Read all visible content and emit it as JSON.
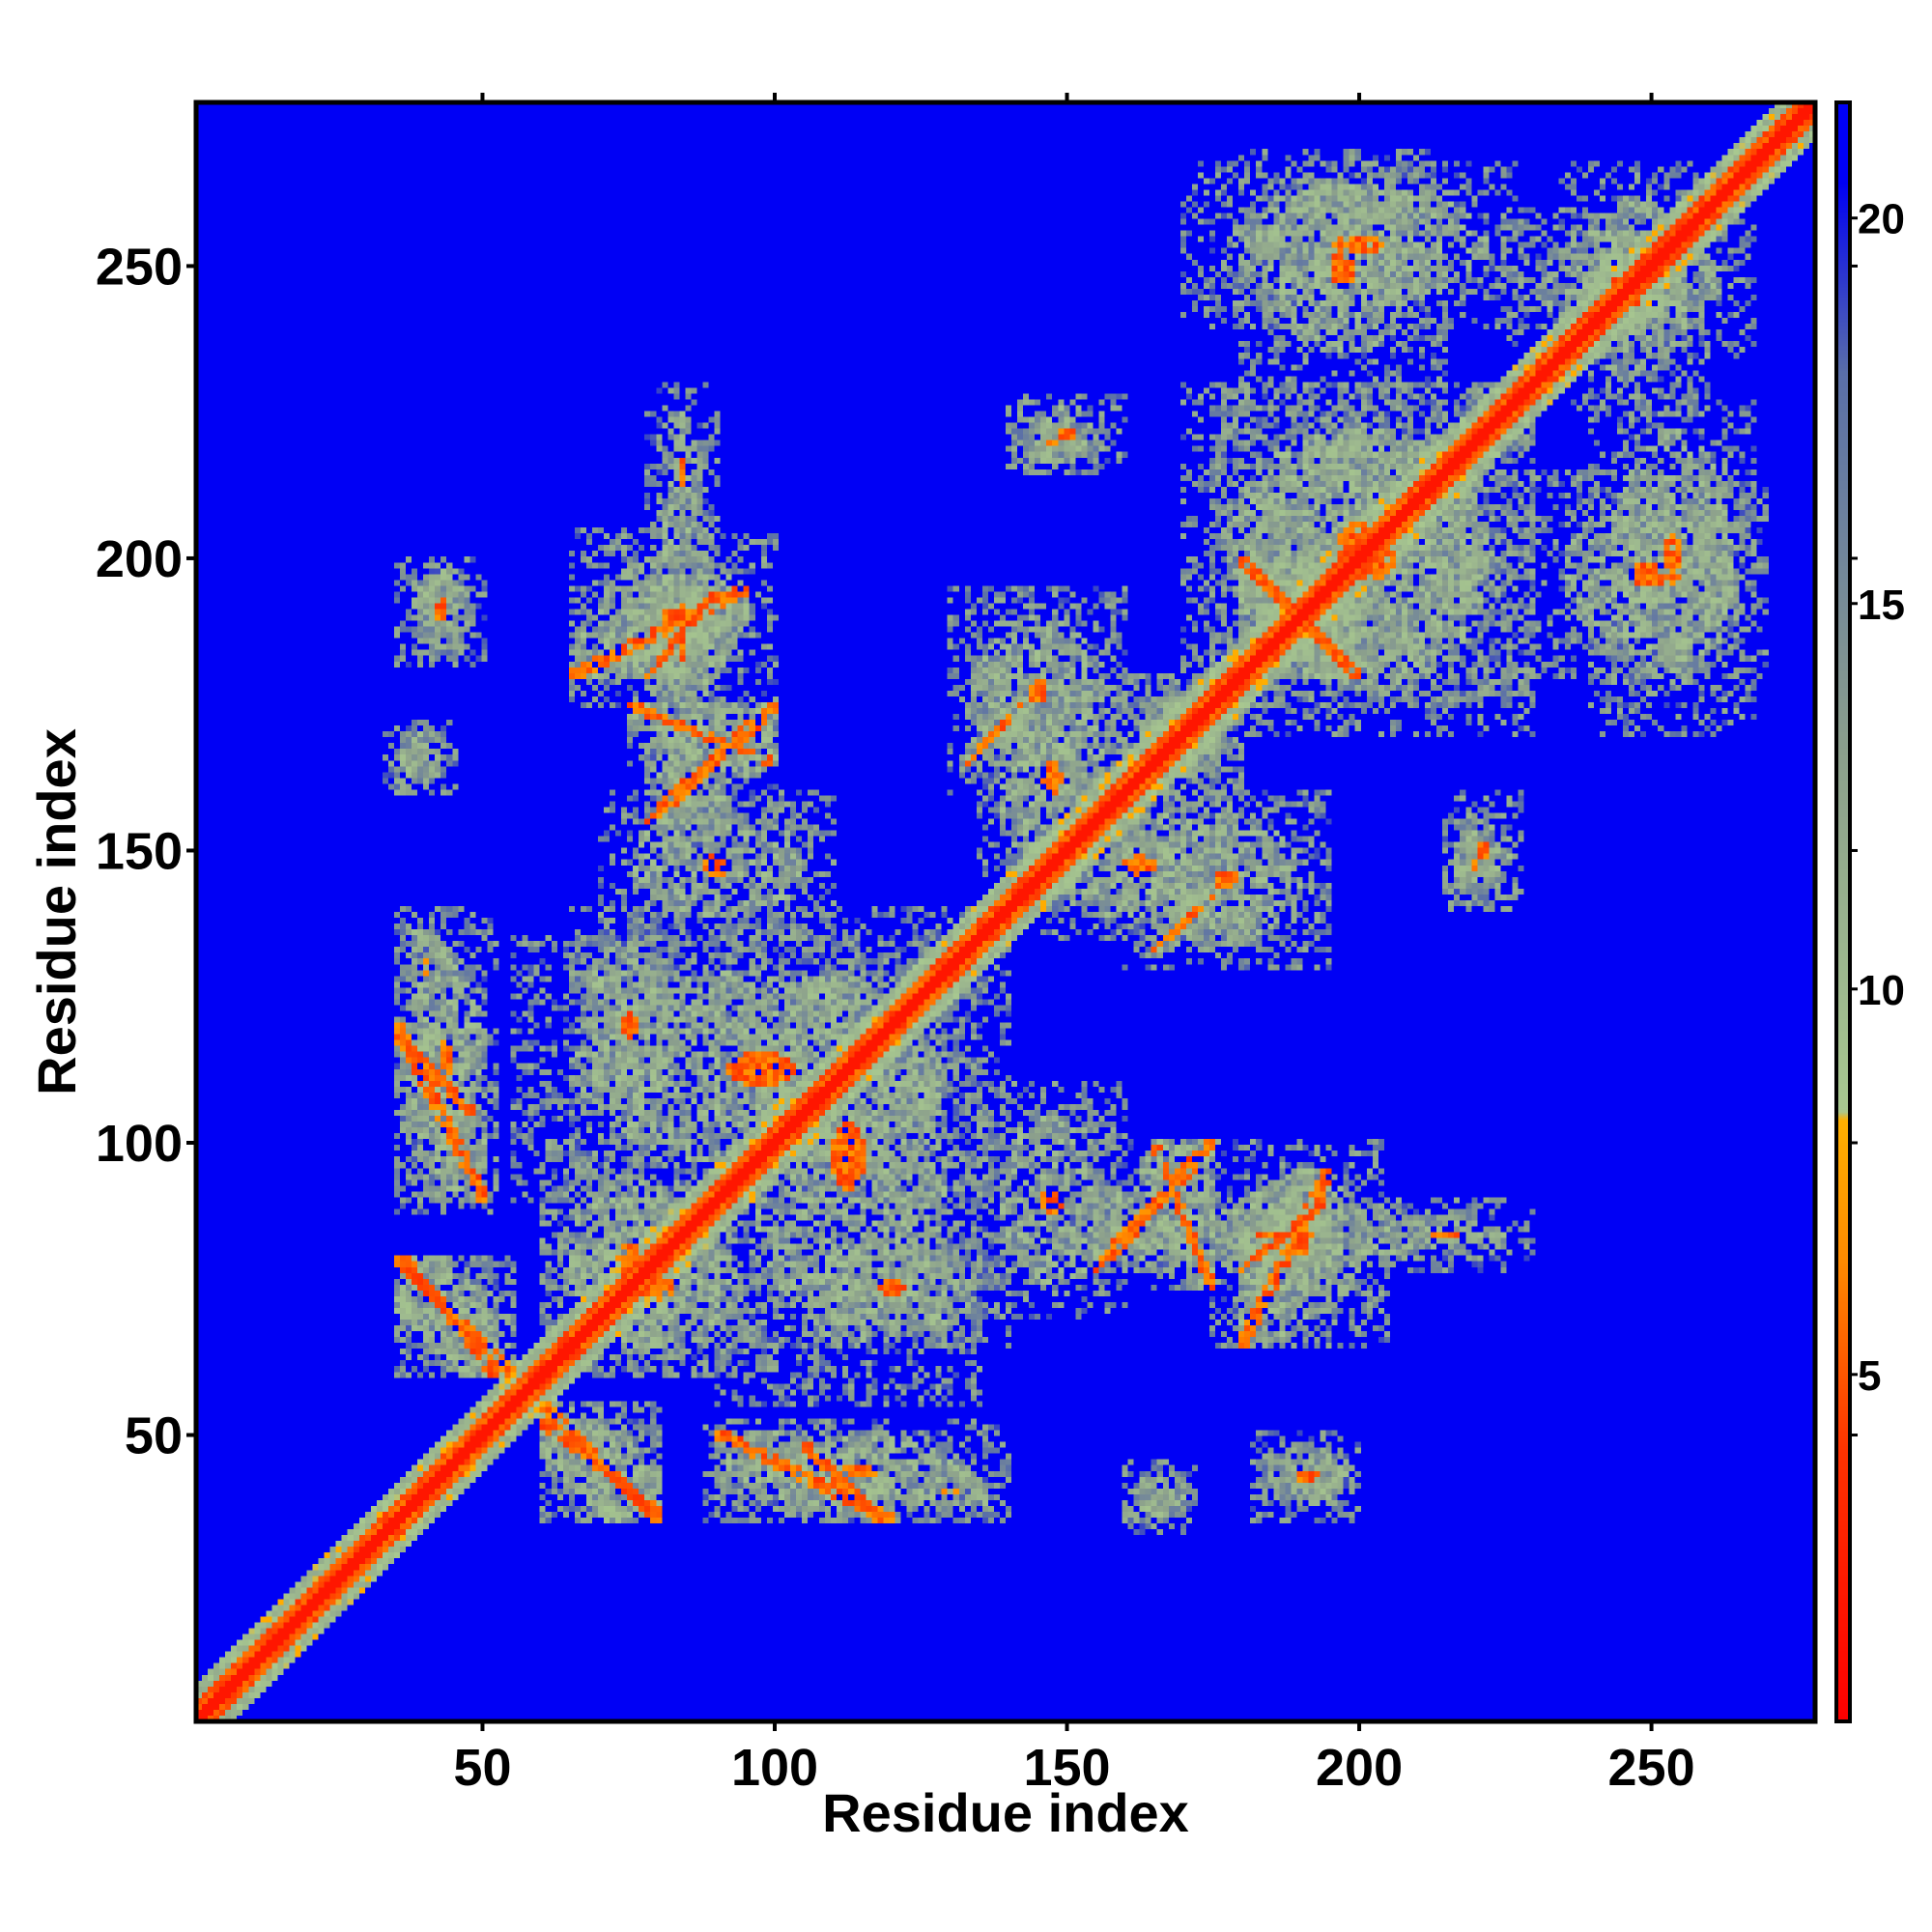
{
  "chart_data": {
    "type": "heatmap",
    "title": "",
    "xlabel": "Residue index",
    "ylabel": "Residue index",
    "xlim": [
      1,
      278
    ],
    "ylim": [
      1,
      278
    ],
    "n_residues": 278,
    "x_ticks": [
      50,
      100,
      150,
      200,
      250
    ],
    "x_tick_labels": [
      "50",
      "100",
      "150",
      "200",
      "250"
    ],
    "y_ticks": [
      50,
      100,
      150,
      200,
      250
    ],
    "y_tick_labels": [
      "50",
      "100",
      "150",
      "200",
      "250"
    ],
    "colorbar": {
      "range": [
        0.5,
        21.5
      ],
      "ticks": [
        5,
        10,
        15,
        20
      ],
      "tick_labels": [
        "5",
        "10",
        "15",
        "20"
      ],
      "stops": [
        {
          "value": 0.5,
          "color": "#ff0000"
        },
        {
          "value": 4.0,
          "color": "#ff3300"
        },
        {
          "value": 6.5,
          "color": "#ff8c00"
        },
        {
          "value": 8.3,
          "color": "#ffb000"
        },
        {
          "value": 8.4,
          "color": "#a8c890"
        },
        {
          "value": 13.0,
          "color": "#8ca08c"
        },
        {
          "value": 18.0,
          "color": "#5a6fa8"
        },
        {
          "value": 20.5,
          "color": "#0000f5"
        }
      ],
      "background_color": "#0000f5"
    },
    "diagonal_band_width": 6,
    "contact_regions": [
      {
        "x": [
          35,
          50
        ],
        "y": [
          90,
          120
        ],
        "kind": "anti"
      },
      {
        "x": [
          38,
          48
        ],
        "y": [
          185,
          200
        ],
        "kind": "patch"
      },
      {
        "x": [
          35,
          42
        ],
        "y": [
          160,
          172
        ],
        "kind": "patch"
      },
      {
        "x": [
          35,
          45
        ],
        "y": [
          120,
          140
        ],
        "kind": "patch"
      },
      {
        "x": [
          36,
          52
        ],
        "y": [
          60,
          80
        ],
        "kind": "anti"
      },
      {
        "x": [
          60,
          80
        ],
        "y": [
          35,
          55
        ],
        "kind": "anti"
      },
      {
        "x": [
          88,
          140
        ],
        "y": [
          35,
          52
        ],
        "kind": "patch"
      },
      {
        "x": [
          105,
          118
        ],
        "y": [
          35,
          48
        ],
        "kind": "anti"
      },
      {
        "x": [
          160,
          172
        ],
        "y": [
          33,
          45
        ],
        "kind": "patch"
      },
      {
        "x": [
          182,
          200
        ],
        "y": [
          35,
          50
        ],
        "kind": "patch"
      },
      {
        "x": [
          65,
          100
        ],
        "y": [
          175,
          205
        ],
        "kind": "patch"
      },
      {
        "x": [
          78,
          90
        ],
        "y": [
          180,
          195
        ],
        "kind": "parallel"
      },
      {
        "x": [
          78,
          100
        ],
        "y": [
          155,
          175
        ],
        "kind": "parallel"
      },
      {
        "x": [
          80,
          88
        ],
        "y": [
          200,
          230
        ],
        "kind": "patch"
      },
      {
        "x": [
          65,
          85
        ],
        "y": [
          100,
          140
        ],
        "kind": "patch"
      },
      {
        "x": [
          90,
          135
        ],
        "y": [
          55,
          140
        ],
        "kind": "patch"
      },
      {
        "x": [
          60,
          90
        ],
        "y": [
          60,
          100
        ],
        "kind": "patch"
      },
      {
        "x": [
          135,
          160
        ],
        "y": [
          70,
          110
        ],
        "kind": "patch"
      },
      {
        "x": [
          165,
          175
        ],
        "y": [
          75,
          100
        ],
        "kind": "anti"
      },
      {
        "x": [
          150,
          225
        ],
        "y": [
          78,
          90
        ],
        "kind": "patch"
      },
      {
        "x": [
          180,
          195
        ],
        "y": [
          65,
          95
        ],
        "kind": "parallel"
      },
      {
        "x": [
          135,
          160
        ],
        "y": [
          140,
          185
        ],
        "kind": "patch"
      },
      {
        "x": [
          160,
          195
        ],
        "y": [
          130,
          160
        ],
        "kind": "patch"
      },
      {
        "x": [
          165,
          175
        ],
        "y": [
          133,
          142
        ],
        "kind": "parallel"
      },
      {
        "x": [
          175,
          230
        ],
        "y": [
          170,
          230
        ],
        "kind": "patch"
      },
      {
        "x": [
          180,
          200
        ],
        "y": [
          180,
          200
        ],
        "kind": "anti"
      },
      {
        "x": [
          140,
          160
        ],
        "y": [
          215,
          228
        ],
        "kind": "patch"
      },
      {
        "x": [
          170,
          230
        ],
        "y": [
          240,
          268
        ],
        "kind": "patch"
      },
      {
        "x": [
          230,
          270
        ],
        "y": [
          180,
          215
        ],
        "kind": "patch"
      },
      {
        "x": [
          215,
          225
        ],
        "y": [
          140,
          155
        ],
        "kind": "patch"
      },
      {
        "x": [
          235,
          260
        ],
        "y": [
          225,
          268
        ],
        "kind": "patch"
      },
      {
        "x": [
          160,
          180
        ],
        "y": [
          160,
          180
        ],
        "kind": "patch"
      }
    ]
  }
}
